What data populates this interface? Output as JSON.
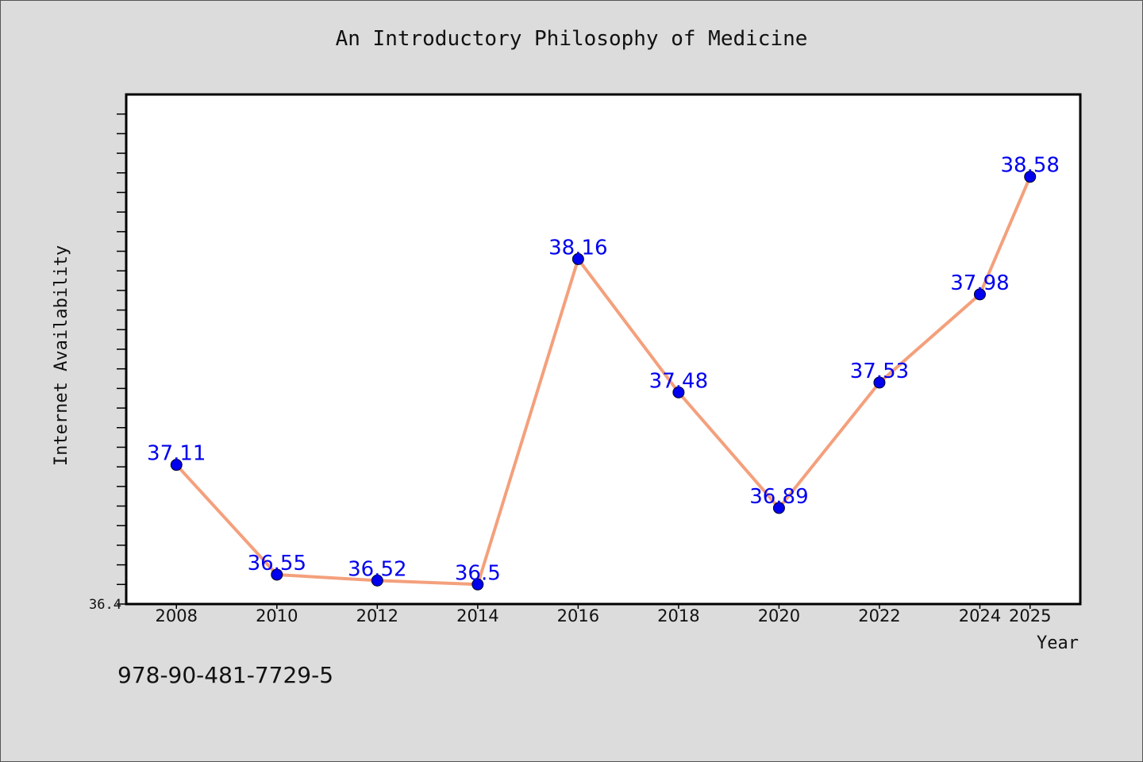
{
  "footer": {
    "isbn": "978-90-481-7729-5"
  },
  "chart_data": {
    "type": "line",
    "title": "An Introductory Philosophy of Medicine",
    "xlabel": "Year",
    "ylabel": "Internet Availability",
    "x": [
      2008,
      2010,
      2012,
      2014,
      2016,
      2018,
      2020,
      2022,
      2024,
      2025
    ],
    "x_tick_labels": [
      "2008",
      "2010",
      "2012",
      "2014",
      "2016",
      "2018",
      "2020",
      "2022",
      "2024",
      "2025"
    ],
    "series": [
      {
        "values": [
          37.11,
          36.55,
          36.52,
          36.5,
          38.16,
          37.48,
          36.89,
          37.53,
          37.98,
          38.58
        ],
        "labels": [
          "37.11",
          "36.55",
          "36.52",
          "36.5",
          "38.16",
          "37.48",
          "36.89",
          "37.53",
          "37.98",
          "38.58"
        ],
        "line_color": "#f4a07c",
        "marker_color": "#0000ee",
        "label_color": "#0000ee"
      }
    ],
    "ylim": [
      36.4,
      39.0
    ],
    "y_tick_labels": [
      "36.4"
    ],
    "grid": false,
    "legend": "none"
  }
}
